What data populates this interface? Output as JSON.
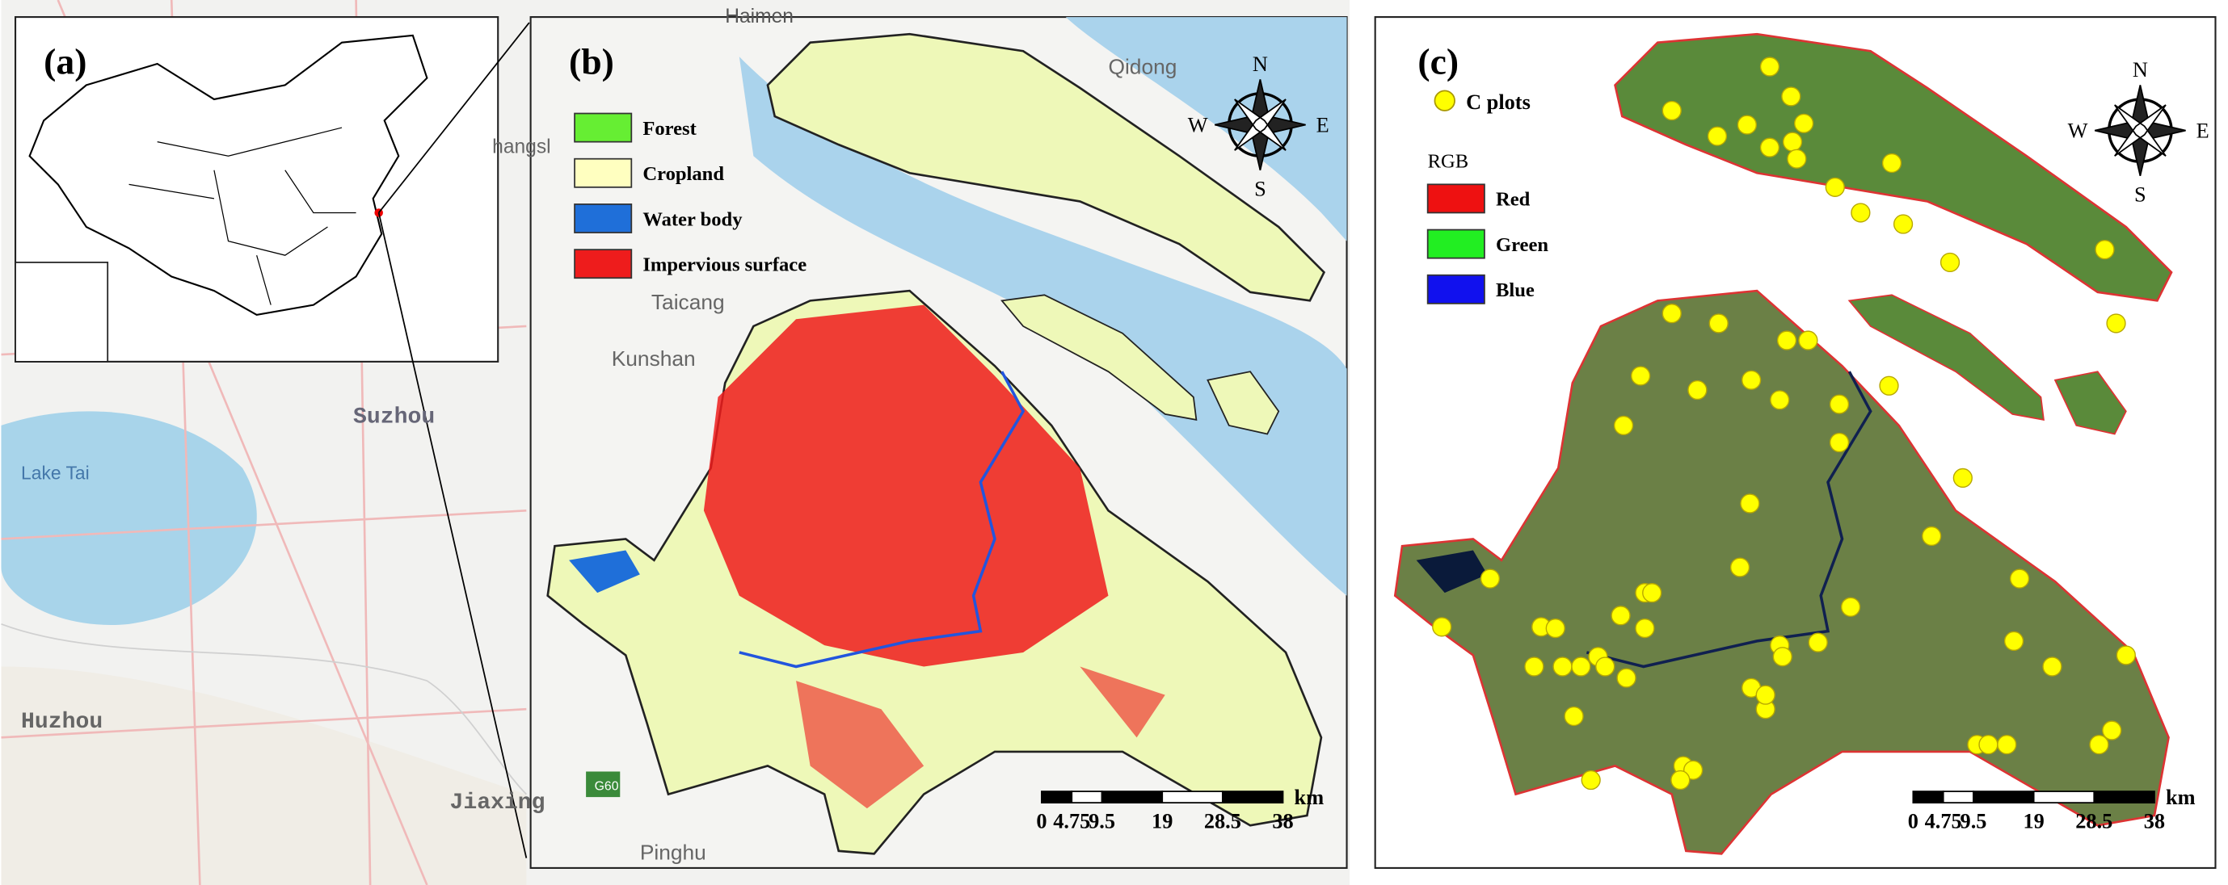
{
  "panels": {
    "a": {
      "label": "(a)"
    },
    "b": {
      "label": "(b)",
      "legend": [
        "Forest",
        "Cropland",
        "Water body",
        "Impervious surface"
      ],
      "compass": {
        "n": "N",
        "s": "S",
        "w": "W",
        "e": "E"
      },
      "scale": {
        "unit": "km",
        "ticks": [
          "0",
          "4.75",
          "9.5",
          "19",
          "28.5",
          "38"
        ]
      }
    },
    "c": {
      "label": "(c)",
      "points_legend": "C plots",
      "rgb_title": "RGB",
      "legend": [
        "Red",
        "Green",
        "Blue"
      ],
      "compass": {
        "n": "N",
        "s": "S",
        "w": "W",
        "e": "E"
      },
      "scale": {
        "unit": "km",
        "ticks": [
          "0",
          "4.75",
          "9.5",
          "19",
          "28.5",
          "38"
        ]
      }
    }
  },
  "map_labels": [
    "Haimen",
    "Qidong",
    "hangsl",
    "Taicang",
    "Kunshan",
    "Suzhou",
    "Lake Tai",
    "Huzhou",
    "Jiaxing",
    "Pinghu",
    "G60"
  ]
}
